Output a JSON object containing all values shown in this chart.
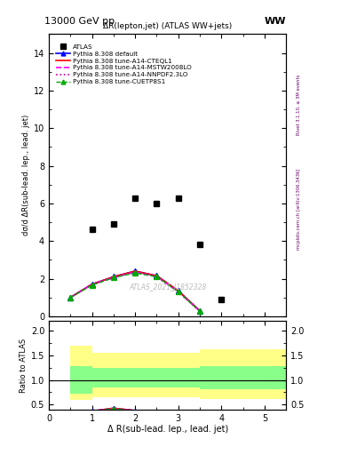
{
  "title_left": "13000 GeV pp",
  "title_right": "WW",
  "plot_title": "ΔR(lepton,jet) (ATLAS WW+jets)",
  "ylabel_main": "dσ/d ΔR(sub-lead. lep., lead. jet)",
  "ylabel_ratio": "Ratio to ATLAS",
  "xlabel": "Δ R(sub-lead. lep., lead. jet)",
  "right_label_top": "Rivet 3.1.10, ≥ 3M events",
  "right_label_bottom": "mcplots.cern.ch [arXiv:1306.3436]",
  "watermark": "ATLAS_2021_I1852328",
  "atlas_x": [
    1.0,
    1.5,
    2.0,
    2.5,
    3.0,
    3.5,
    4.0,
    4.5
  ],
  "atlas_y": [
    4.6,
    4.9,
    6.3,
    6.0,
    6.3,
    3.8,
    0.9,
    null
  ],
  "atlas_x2": [
    4.5
  ],
  "atlas_y2": [
    0.9
  ],
  "mc_x": [
    0.5,
    1.0,
    1.5,
    2.0,
    2.5,
    3.0,
    3.5,
    4.0,
    4.5
  ],
  "default_y": [
    1.0,
    1.7,
    2.1,
    2.4,
    2.15,
    1.35,
    0.28,
    null,
    null
  ],
  "cteql1_y": [
    1.0,
    1.7,
    2.1,
    2.4,
    2.15,
    1.35,
    0.28,
    null,
    null
  ],
  "mstw_y": [
    1.0,
    1.7,
    2.05,
    2.35,
    2.1,
    1.3,
    0.27,
    null,
    null
  ],
  "nnpdf_y": [
    1.0,
    1.7,
    2.05,
    2.35,
    2.1,
    1.3,
    0.27,
    null,
    null
  ],
  "cuetp_y": [
    1.0,
    1.65,
    2.05,
    2.3,
    2.1,
    1.3,
    0.26,
    null,
    null
  ],
  "ylim_main": [
    0,
    15
  ],
  "ylim_ratio": [
    0.4,
    2.2
  ],
  "ratio_yticks": [
    0.5,
    1.0,
    1.5,
    2.0
  ],
  "main_yticks": [
    0,
    2,
    4,
    6,
    8,
    10,
    12,
    14
  ],
  "color_default": "#0000ff",
  "color_cteql1": "#ff0000",
  "color_mstw": "#ff00ff",
  "color_nnpdf": "#cc00aa",
  "color_cuetp": "#00aa00",
  "band_x_edges": [
    0.0,
    0.5,
    1.0,
    1.5,
    2.0,
    2.5,
    3.0,
    3.5,
    4.0,
    4.5,
    5.5
  ],
  "yellow_lo": [
    1.0,
    0.6,
    0.65,
    0.65,
    0.65,
    0.65,
    0.65,
    0.62,
    0.62,
    0.62
  ],
  "yellow_hi": [
    1.0,
    1.7,
    1.55,
    1.55,
    1.55,
    1.55,
    1.55,
    1.62,
    1.62,
    1.62
  ],
  "green_lo": [
    1.0,
    0.72,
    0.85,
    0.85,
    0.85,
    0.85,
    0.85,
    0.82,
    0.82,
    0.82
  ],
  "green_hi": [
    1.0,
    1.28,
    1.25,
    1.25,
    1.25,
    1.25,
    1.25,
    1.28,
    1.28,
    1.28
  ]
}
